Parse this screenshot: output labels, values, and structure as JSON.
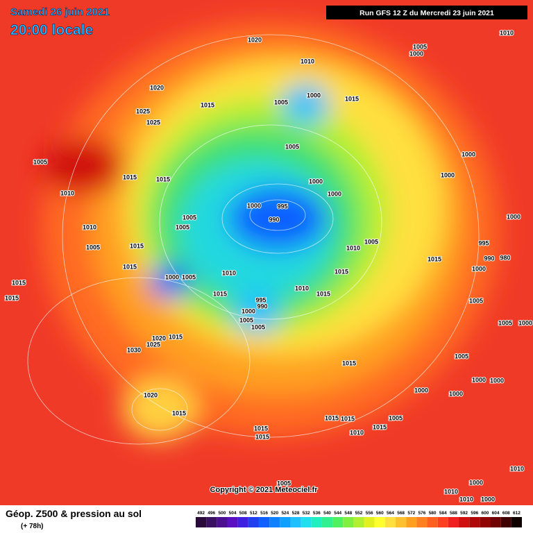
{
  "header": {
    "date": "Samedi 26 juin 2021",
    "time": "20:00 locale",
    "run": "Run GFS 12 Z du Mercredi 23 juin 2021"
  },
  "isobar_labels": [
    "1010",
    "1020",
    "1010",
    "1005",
    "1000",
    "1020",
    "1000",
    "1005",
    "1015",
    "1015",
    "1025",
    "1025",
    "1005",
    "1005",
    "1015",
    "1015",
    "1000",
    "1000",
    "1000",
    "1000",
    "1010",
    "1000",
    "995",
    "990",
    "1005",
    "1005",
    "1010",
    "1000",
    "1005",
    "1015",
    "1005",
    "1010",
    "995",
    "990",
    "980",
    "1015",
    "1015",
    "1000",
    "1000",
    "1005",
    "1010",
    "1015",
    "1015",
    "1010",
    "1015",
    "1015",
    "1015",
    "995",
    "990",
    "1000",
    "1005",
    "1005",
    "1005",
    "1005",
    "1000",
    "1020",
    "1015",
    "1025",
    "1030",
    "1015",
    "1005",
    "1000",
    "1000",
    "1000",
    "1000",
    "1020",
    "1015",
    "1015",
    "1015",
    "1005",
    "1015",
    "1015",
    "1010",
    "1015",
    "1010",
    "1000",
    "1005",
    "1010",
    "1010",
    "1000"
  ],
  "footer": {
    "title": "Géop. Z500 & pression au sol",
    "lead": "(+ 78h)",
    "copyright": "Copyright © 2021 Meteociel.fr",
    "scale": [
      "492",
      "496",
      "500",
      "504",
      "508",
      "512",
      "516",
      "520",
      "524",
      "528",
      "532",
      "536",
      "540",
      "544",
      "548",
      "552",
      "556",
      "560",
      "564",
      "568",
      "572",
      "576",
      "580",
      "584",
      "588",
      "592",
      "596",
      "600",
      "604",
      "608",
      "612"
    ]
  }
}
